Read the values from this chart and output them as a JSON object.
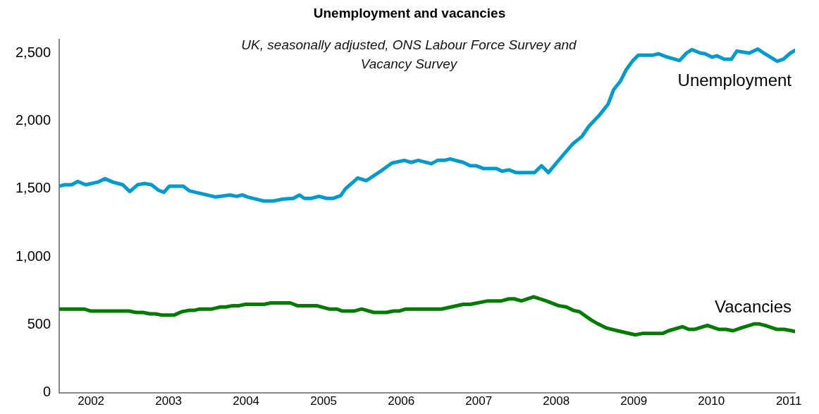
{
  "chart_data": {
    "type": "line",
    "title": "Unemployment and vacancies",
    "subtitle": "UK, seasonally adjusted, ONS Labour Force Survey and Vacancy Survey",
    "xlim": [
      2001.59,
      2011.08
    ],
    "xticks": [
      2002,
      2003,
      2004,
      2005,
      2006,
      2007,
      2008,
      2009,
      2010,
      2011
    ],
    "ylim": [
      0,
      2600
    ],
    "yticks": [
      {
        "value": 0,
        "label": "0"
      },
      {
        "value": 500,
        "label": "500"
      },
      {
        "value": 1000,
        "label": "1,000"
      },
      {
        "value": 1500,
        "label": "1,500"
      },
      {
        "value": 2000,
        "label": "2,000"
      },
      {
        "value": 2500,
        "label": "2,500"
      }
    ],
    "grid": false,
    "legend": false,
    "marker": "none",
    "line_style": "solid",
    "series": [
      {
        "name": "Unemployment",
        "color": "#0099cc",
        "x": [
          2001.59,
          2001.66,
          2001.75,
          2001.83,
          2001.93,
          2002.09,
          2002.18,
          2002.28,
          2002.41,
          2002.5,
          2002.6,
          2002.69,
          2002.78,
          2002.87,
          2002.94,
          2003.01,
          2003.19,
          2003.27,
          2003.61,
          2003.79,
          2003.88,
          2003.95,
          2004.02,
          2004.23,
          2004.34,
          2004.48,
          2004.61,
          2004.69,
          2004.75,
          2004.84,
          2004.94,
          2005.04,
          2005.12,
          2005.22,
          2005.28,
          2005.44,
          2005.55,
          2005.76,
          2005.88,
          2006.04,
          2006.13,
          2006.22,
          2006.39,
          2006.47,
          2006.56,
          2006.63,
          2006.8,
          2006.89,
          2006.97,
          2007.06,
          2007.23,
          2007.3,
          2007.39,
          2007.48,
          2007.72,
          2007.81,
          2007.9,
          2008.06,
          2008.21,
          2008.33,
          2008.42,
          2008.56,
          2008.67,
          2008.74,
          2008.83,
          2008.9,
          2008.99,
          2009.06,
          2009.25,
          2009.32,
          2009.41,
          2009.59,
          2009.68,
          2009.75,
          2009.86,
          2009.92,
          2010.01,
          2010.07,
          2010.17,
          2010.26,
          2010.33,
          2010.49,
          2010.6,
          2010.69,
          2010.85,
          2010.93,
          2011.02,
          2011.08
        ],
        "values": [
          1520,
          1530,
          1530,
          1555,
          1530,
          1550,
          1575,
          1550,
          1530,
          1480,
          1530,
          1540,
          1530,
          1490,
          1475,
          1520,
          1520,
          1485,
          1440,
          1455,
          1445,
          1455,
          1440,
          1410,
          1410,
          1425,
          1430,
          1455,
          1430,
          1430,
          1445,
          1430,
          1430,
          1450,
          1500,
          1580,
          1560,
          1640,
          1690,
          1710,
          1695,
          1710,
          1685,
          1710,
          1710,
          1720,
          1695,
          1670,
          1670,
          1650,
          1650,
          1630,
          1640,
          1620,
          1620,
          1670,
          1620,
          1730,
          1830,
          1885,
          1960,
          2045,
          2125,
          2230,
          2295,
          2375,
          2445,
          2485,
          2485,
          2495,
          2475,
          2445,
          2500,
          2525,
          2500,
          2495,
          2470,
          2480,
          2455,
          2455,
          2515,
          2500,
          2530,
          2495,
          2440,
          2455,
          2500,
          2520
        ]
      },
      {
        "name": "Vacancies",
        "color": "#007a00",
        "x": [
          2001.59,
          2001.91,
          2002.0,
          2002.49,
          2002.58,
          2002.67,
          2002.76,
          2002.83,
          2002.92,
          2003.07,
          2003.17,
          2003.26,
          2003.33,
          2003.4,
          2003.56,
          2003.67,
          2003.74,
          2003.83,
          2003.91,
          2003.99,
          2004.23,
          2004.32,
          2004.57,
          2004.66,
          2004.91,
          2005.07,
          2005.17,
          2005.24,
          2005.39,
          2005.49,
          2005.65,
          2005.81,
          2005.9,
          2005.97,
          2006.06,
          2006.33,
          2006.52,
          2006.8,
          2006.89,
          2007.12,
          2007.29,
          2007.39,
          2007.46,
          2007.55,
          2007.71,
          2007.87,
          2008.03,
          2008.13,
          2008.22,
          2008.3,
          2008.45,
          2008.54,
          2008.65,
          2008.79,
          2009.02,
          2009.11,
          2009.37,
          2009.45,
          2009.63,
          2009.71,
          2009.78,
          2009.95,
          2010.1,
          2010.19,
          2010.28,
          2010.38,
          2010.55,
          2010.62,
          2010.72,
          2010.85,
          2010.94,
          2011.04,
          2011.08
        ],
        "values": [
          615,
          615,
          600,
          600,
          590,
          590,
          580,
          580,
          570,
          570,
          595,
          605,
          605,
          615,
          615,
          630,
          630,
          640,
          640,
          650,
          650,
          660,
          660,
          640,
          640,
          615,
          615,
          600,
          600,
          615,
          590,
          590,
          600,
          600,
          615,
          615,
          615,
          650,
          650,
          675,
          675,
          690,
          690,
          675,
          705,
          675,
          640,
          630,
          605,
          595,
          535,
          505,
          475,
          455,
          425,
          435,
          435,
          455,
          485,
          465,
          465,
          495,
          465,
          465,
          455,
          475,
          505,
          505,
          490,
          465,
          465,
          455,
          450
        ]
      }
    ]
  }
}
